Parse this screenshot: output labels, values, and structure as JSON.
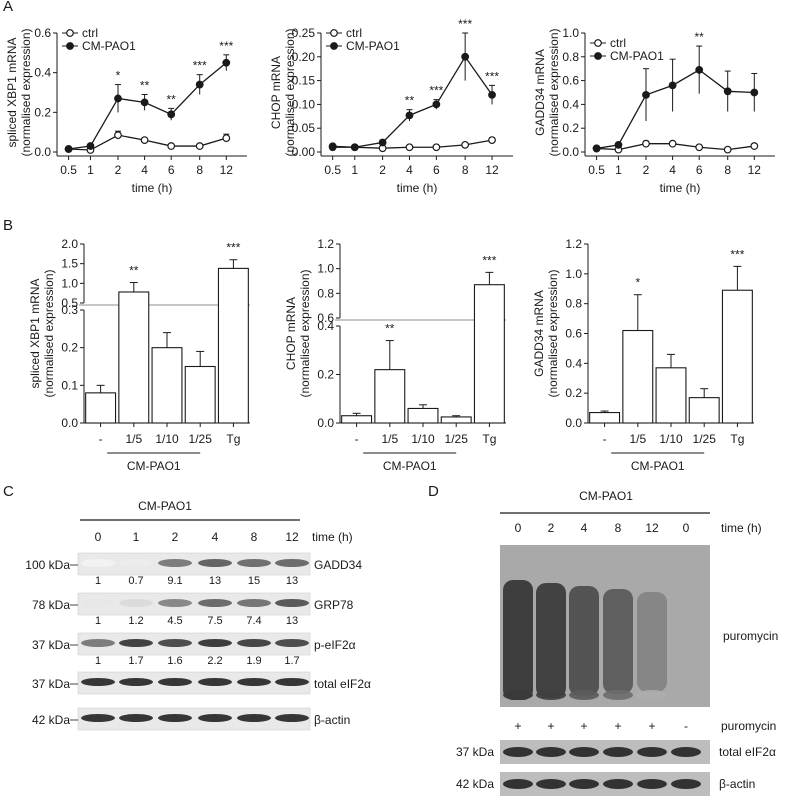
{
  "panels": {
    "A": "A",
    "B": "B",
    "C": "C",
    "D": "D"
  },
  "panelA": {
    "x_ticks": [
      "0.5",
      "1",
      "2",
      "4",
      "6",
      "8",
      "12"
    ],
    "xlabel": "time (h)",
    "legend": [
      "ctrl",
      "CM-PAO1"
    ],
    "charts": [
      {
        "ylabel1": "spliced XBP1 mRNA",
        "ylabel2": "(normalised expression)",
        "yticks": [
          "0.0",
          "0.2",
          "0.4",
          "0.6"
        ]
      },
      {
        "ylabel1": "CHOP mRNA",
        "ylabel2": "(normalised expression)",
        "yticks": [
          "0.00",
          "0.05",
          "0.10",
          "0.15",
          "0.20",
          "0.25"
        ]
      },
      {
        "ylabel1": "GADD34 mRNA",
        "ylabel2": "(normalised expression)",
        "yticks": [
          "0.0",
          "0.2",
          "0.4",
          "0.6",
          "0.8",
          "1.0"
        ]
      }
    ]
  },
  "panelB": {
    "categories": [
      "-",
      "1/5",
      "1/10",
      "1/25",
      "Tg"
    ],
    "group_label": "CM-PAO1",
    "charts": [
      {
        "ylabel1": "spliced XBP1 mRNA",
        "ylabel2": "(normalised expression)",
        "yticks_upper": [
          "0.5",
          "1.0",
          "1.5",
          "2.0"
        ],
        "yticks_lower": [
          "0.0",
          "0.1",
          "0.2",
          "0.3"
        ]
      },
      {
        "ylabel1": "CHOP mRNA",
        "ylabel2": "(normalised expression)",
        "yticks_upper": [
          "0.6",
          "0.8",
          "1.0",
          "1.2"
        ],
        "yticks_lower": [
          "0.0",
          "0.2",
          "0.4"
        ]
      },
      {
        "ylabel1": "GADD34 mRNA",
        "ylabel2": "(normalised expression)",
        "yticks": [
          "0.0",
          "0.2",
          "0.4",
          "0.6",
          "0.8",
          "1.0",
          "1.2"
        ]
      }
    ]
  },
  "panelC": {
    "header": "CM-PAO1",
    "time_label": "time (h)",
    "times": [
      "0",
      "1",
      "2",
      "4",
      "8",
      "12"
    ],
    "rows": [
      {
        "mw": "100 kDa",
        "protein": "GADD34",
        "quant": [
          "1",
          "0.7",
          "9.1",
          "13",
          "15",
          "13"
        ]
      },
      {
        "mw": "78 kDa",
        "protein": "GRP78",
        "quant": [
          "1",
          "1.2",
          "4.5",
          "7.5",
          "7.4",
          "13"
        ]
      },
      {
        "mw": "37 kDa",
        "protein": "p-eIF2α",
        "quant": [
          "1",
          "1.7",
          "1.6",
          "2.2",
          "1.9",
          "1.7"
        ]
      },
      {
        "mw": "37 kDa",
        "protein": "total eIF2α",
        "quant": []
      },
      {
        "mw": "42 kDa",
        "protein": "β-actin",
        "quant": []
      }
    ]
  },
  "panelD": {
    "header": "CM-PAO1",
    "time_label": "time (h)",
    "times": [
      "0",
      "2",
      "4",
      "8",
      "12",
      "0"
    ],
    "puro_label": "puromycin",
    "puro_row_label": "puromycin",
    "puro_signs": [
      "+",
      "+",
      "+",
      "+",
      "+",
      "-"
    ],
    "rows": [
      {
        "mw": "37 kDa",
        "protein": "total eIF2α"
      },
      {
        "mw": "42 kDa",
        "protein": "β-actin"
      }
    ]
  },
  "chart_data": [
    {
      "type": "line",
      "title": "",
      "xlabel": "time (h)",
      "ylabel": "spliced XBP1 mRNA (normalised expression)",
      "x": [
        "0.5",
        "1",
        "2",
        "4",
        "6",
        "8",
        "12"
      ],
      "ylim": [
        0,
        0.6
      ],
      "series": [
        {
          "name": "ctrl",
          "values": [
            0.015,
            0.01,
            0.085,
            0.06,
            0.03,
            0.03,
            0.07
          ],
          "errors": [
            0,
            0,
            0.02,
            0.01,
            0,
            0,
            0.02
          ]
        },
        {
          "name": "CM-PAO1",
          "values": [
            0.015,
            0.03,
            0.27,
            0.25,
            0.19,
            0.34,
            0.45
          ],
          "errors": [
            0,
            0,
            0.07,
            0.04,
            0.03,
            0.05,
            0.04
          ]
        }
      ],
      "annotations": [
        "",
        "",
        "*",
        "**",
        "**",
        "***",
        "***"
      ]
    },
    {
      "type": "line",
      "title": "",
      "xlabel": "time (h)",
      "ylabel": "CHOP mRNA (normalised expression)",
      "x": [
        "0.5",
        "1",
        "2",
        "4",
        "6",
        "8",
        "12"
      ],
      "ylim": [
        0,
        0.25
      ],
      "series": [
        {
          "name": "ctrl",
          "values": [
            0.01,
            0.01,
            0.008,
            0.01,
            0.01,
            0.015,
            0.025
          ],
          "errors": [
            0,
            0,
            0,
            0,
            0,
            0,
            0.005
          ]
        },
        {
          "name": "CM-PAO1",
          "values": [
            0.012,
            0.01,
            0.02,
            0.077,
            0.1,
            0.2,
            0.12
          ],
          "errors": [
            0,
            0,
            0.005,
            0.012,
            0.01,
            0.05,
            0.02
          ]
        }
      ],
      "annotations": [
        "",
        "",
        "",
        "**",
        "***",
        "***",
        "***"
      ]
    },
    {
      "type": "line",
      "title": "",
      "xlabel": "time (h)",
      "ylabel": "GADD34 mRNA (normalised expression)",
      "x": [
        "0.5",
        "1",
        "2",
        "4",
        "6",
        "8",
        "12"
      ],
      "ylim": [
        0,
        1.0
      ],
      "series": [
        {
          "name": "ctrl",
          "values": [
            0.03,
            0.02,
            0.07,
            0.07,
            0.04,
            0.02,
            0.05
          ],
          "errors": [
            0,
            0,
            0.02,
            0.01,
            0,
            0,
            0
          ]
        },
        {
          "name": "CM-PAO1",
          "values": [
            0.03,
            0.06,
            0.48,
            0.56,
            0.69,
            0.51,
            0.5
          ],
          "errors": [
            0,
            0,
            0.22,
            0.22,
            0.2,
            0.17,
            0.16
          ]
        }
      ],
      "annotations": [
        "",
        "",
        "",
        "",
        "**",
        "",
        ""
      ]
    },
    {
      "type": "bar",
      "title": "",
      "ylabel": "spliced XBP1 mRNA (normalised expression)",
      "categories": [
        "-",
        "1/5",
        "1/10",
        "1/25",
        "Tg"
      ],
      "values": [
        0.08,
        0.78,
        0.2,
        0.15,
        1.38
      ],
      "errors": [
        0.02,
        0.24,
        0.04,
        0.04,
        0.22
      ],
      "annotations": [
        "",
        "**",
        "",
        "",
        "***"
      ],
      "axis_break": true
    },
    {
      "type": "bar",
      "title": "",
      "ylabel": "CHOP mRNA (normalised expression)",
      "categories": [
        "-",
        "1/5",
        "1/10",
        "1/25",
        "Tg"
      ],
      "values": [
        0.03,
        0.22,
        0.06,
        0.025,
        0.87
      ],
      "errors": [
        0.01,
        0.12,
        0.015,
        0.005,
        0.1
      ],
      "annotations": [
        "",
        "**",
        "",
        "",
        "***"
      ],
      "axis_break": true
    },
    {
      "type": "bar",
      "title": "",
      "ylabel": "GADD34 mRNA (normalised expression)",
      "categories": [
        "-",
        "1/5",
        "1/10",
        "1/25",
        "Tg"
      ],
      "values": [
        0.07,
        0.62,
        0.37,
        0.17,
        0.89
      ],
      "errors": [
        0.01,
        0.24,
        0.09,
        0.06,
        0.16
      ],
      "annotations": [
        "",
        "*",
        "",
        "",
        "***"
      ],
      "ylim": [
        0,
        1.2
      ]
    }
  ]
}
